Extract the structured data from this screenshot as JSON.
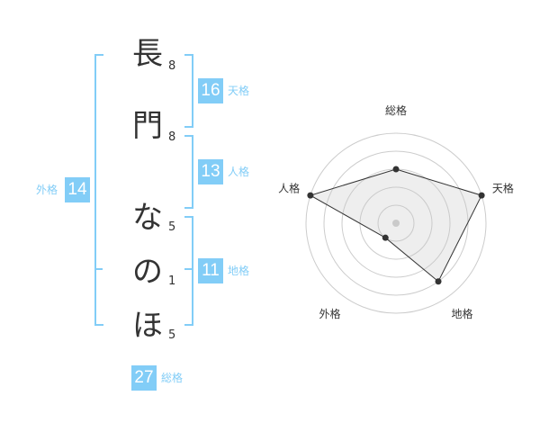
{
  "name": {
    "chars": [
      {
        "char": "長",
        "strokes": "8"
      },
      {
        "char": "門",
        "strokes": "8"
      },
      {
        "char": "な",
        "strokes": "5"
      },
      {
        "char": "の",
        "strokes": "1"
      },
      {
        "char": "ほ",
        "strokes": "5"
      }
    ]
  },
  "results": {
    "tenkaku": {
      "label": "天格",
      "value": "16"
    },
    "jinkaku": {
      "label": "人格",
      "value": "13"
    },
    "chikaku": {
      "label": "地格",
      "value": "11"
    },
    "gaikaku": {
      "label": "外格",
      "value": "14"
    },
    "soukaku": {
      "label": "総格",
      "value": "27"
    }
  },
  "colors": {
    "accent": "#82cdf7",
    "text": "#333333"
  },
  "chart_data": {
    "type": "radar",
    "axes": [
      "総格",
      "天格",
      "地格",
      "外格",
      "人格"
    ],
    "values": [
      3,
      5,
      4,
      1,
      5
    ],
    "range": [
      0,
      5
    ],
    "grid": true
  }
}
